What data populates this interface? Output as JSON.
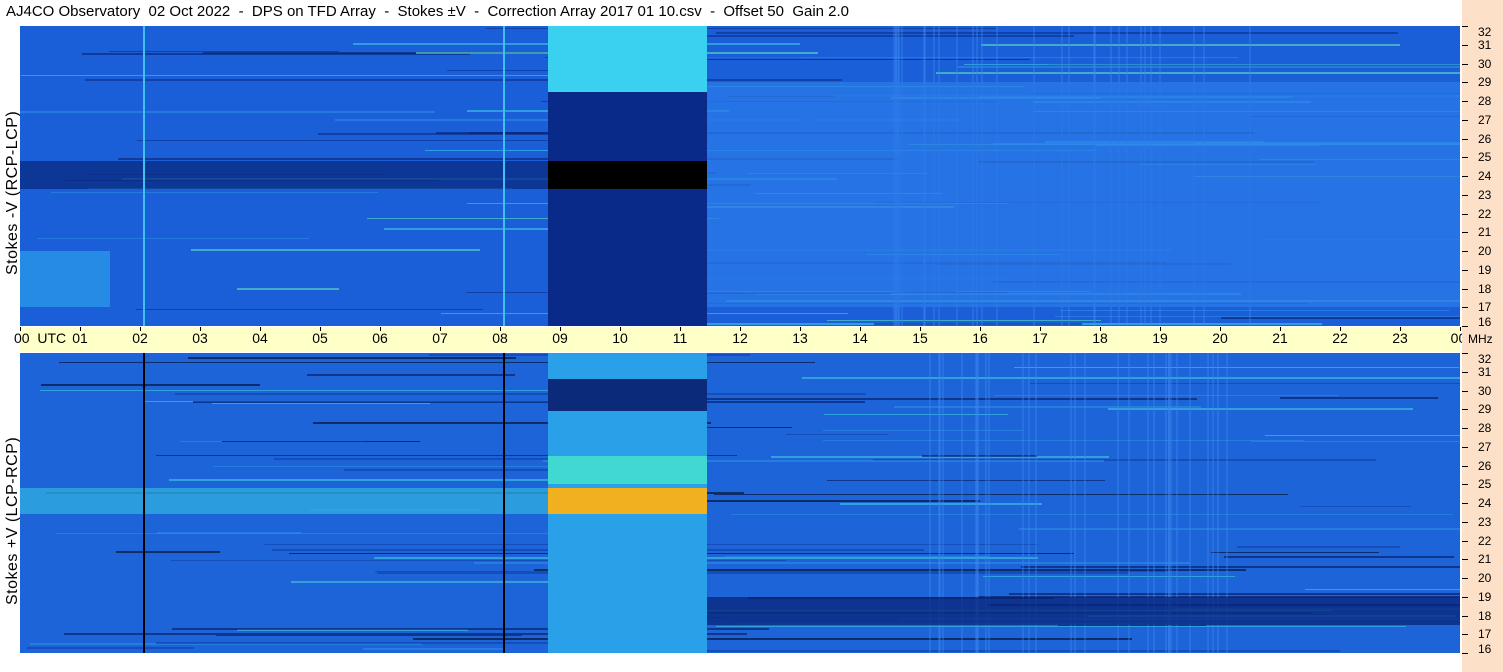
{
  "title": "AJ4CO Observatory  02 Oct 2022  -  DPS on TFD Array  -  Stokes ±V  -  Correction Array 2017 01 10.csv  -  Offset 50  Gain 2.0",
  "panels": {
    "top": {
      "ylabel": "Stokes -V (RCP-LCP)"
    },
    "bottom": {
      "ylabel": "Stokes +V (LCP-RCP)"
    }
  },
  "colors": {
    "background_blue": "#1a5fd8",
    "dark_blue": "#0b2a7a",
    "black": "#000000",
    "cyan": "#18c8e8",
    "yellow": "#f0d020",
    "orange": "#f0a020",
    "time_axis_bg": "#ffffc8",
    "freq_axis_bg": "#fce0c8"
  },
  "chart_data": {
    "type": "heatmap",
    "x": {
      "label": "UTC",
      "ticks": [
        "00  UTC",
        "01",
        "02",
        "03",
        "04",
        "05",
        "06",
        "07",
        "08",
        "09",
        "10",
        "11",
        "12",
        "13",
        "14",
        "15",
        "16",
        "17",
        "18",
        "19",
        "20",
        "21",
        "22",
        "23",
        "00"
      ],
      "hours": [
        0,
        1,
        2,
        3,
        4,
        5,
        6,
        7,
        8,
        9,
        10,
        11,
        12,
        13,
        14,
        15,
        16,
        17,
        18,
        19,
        20,
        21,
        22,
        23,
        24
      ],
      "range": [
        0,
        24
      ]
    },
    "y": {
      "unit": "MHz",
      "ticks": [
        "32",
        "31",
        "30",
        "29",
        "28",
        "27",
        "26",
        "25",
        "24",
        "23",
        "22",
        "21",
        "20",
        "19",
        "18",
        "17",
        "16"
      ],
      "values": [
        32,
        31,
        30,
        29,
        28,
        27,
        26,
        25,
        24,
        23,
        22,
        21,
        20,
        19,
        18,
        17,
        16
      ],
      "range": [
        16,
        32
      ]
    },
    "panels": [
      {
        "name": "Stokes -V (RCP-LCP)",
        "features": [
          {
            "kind": "strip",
            "from_hour": 8.8,
            "to_hour": 11.45,
            "from_mhz": 16,
            "to_mhz": 29.9,
            "color": "#0a2a8a"
          },
          {
            "kind": "strip",
            "from_hour": 8.8,
            "to_hour": 11.45,
            "from_mhz": 28.5,
            "to_mhz": 32,
            "color": "#3ad0f0"
          },
          {
            "kind": "strip",
            "from_hour": 8.8,
            "to_hour": 11.45,
            "from_mhz": 23.3,
            "to_mhz": 24.8,
            "color": "#000000"
          },
          {
            "kind": "band",
            "from_hour": 0,
            "to_hour": 8.8,
            "from_mhz": 23.3,
            "to_mhz": 24.8,
            "color": "#0a2a80"
          },
          {
            "kind": "band",
            "from_hour": 11.45,
            "to_hour": 24,
            "from_mhz": 17,
            "to_mhz": 29,
            "color": "#2a7ae8"
          },
          {
            "kind": "band",
            "from_hour": 0,
            "to_hour": 1.5,
            "from_mhz": 17,
            "to_mhz": 20,
            "color": "#2a9ae8"
          },
          {
            "kind": "vline",
            "hour": 2.05,
            "color": "#40c0f0"
          },
          {
            "kind": "vline",
            "hour": 8.05,
            "color": "#40c0f0"
          }
        ]
      },
      {
        "name": "Stokes +V (LCP-RCP)",
        "features": [
          {
            "kind": "strip",
            "from_hour": 8.8,
            "to_hour": 11.45,
            "from_mhz": 16,
            "to_mhz": 32,
            "color": "#2aa0e8"
          },
          {
            "kind": "strip",
            "from_hour": 8.8,
            "to_hour": 11.45,
            "from_mhz": 28.9,
            "to_mhz": 30.6,
            "color": "#0b2a7a"
          },
          {
            "kind": "strip",
            "from_hour": 8.8,
            "to_hour": 11.45,
            "from_mhz": 25,
            "to_mhz": 26.5,
            "color": "#40d8d0"
          },
          {
            "kind": "strip",
            "from_hour": 8.8,
            "to_hour": 11.45,
            "from_mhz": 23.4,
            "to_mhz": 24.8,
            "color": "#f0b020"
          },
          {
            "kind": "band",
            "from_hour": 0,
            "to_hour": 8.8,
            "from_mhz": 23.4,
            "to_mhz": 24.8,
            "color": "#30b0e0"
          },
          {
            "kind": "band",
            "from_hour": 11.45,
            "to_hour": 24,
            "from_mhz": 17.5,
            "to_mhz": 19,
            "color": "#08247a"
          },
          {
            "kind": "vline",
            "hour": 2.05,
            "color": "#000000"
          },
          {
            "kind": "vline",
            "hour": 8.05,
            "color": "#000000"
          }
        ]
      }
    ]
  }
}
